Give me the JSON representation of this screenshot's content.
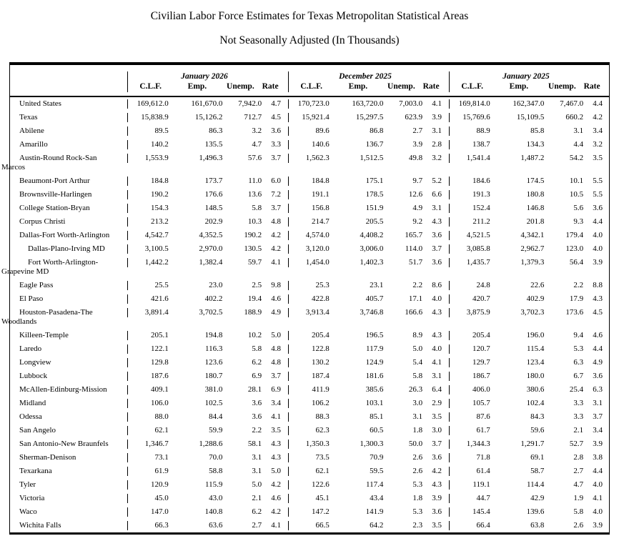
{
  "title": {
    "line1": "Civilian Labor Force Estimates for Texas Metropolitan Statistical Areas",
    "line2": "Not Seasonally Adjusted (In Thousands)"
  },
  "table": {
    "groups": [
      "January 2026",
      "December 2025",
      "January 2025"
    ],
    "columns": [
      "C.L.F.",
      "Emp.",
      "Unemp.",
      "Rate"
    ],
    "rows": [
      {
        "area": "United States",
        "indent": 0,
        "values": [
          "169,612.0",
          "161,670.0",
          "7,942.0",
          "4.7",
          "170,723.0",
          "163,720.0",
          "7,003.0",
          "4.1",
          "169,814.0",
          "162,347.0",
          "7,467.0",
          "4.4"
        ]
      },
      {
        "area": "Texas",
        "indent": 0,
        "values": [
          "15,838.9",
          "15,126.2",
          "712.7",
          "4.5",
          "15,921.4",
          "15,297.5",
          "623.9",
          "3.9",
          "15,769.6",
          "15,109.5",
          "660.2",
          "4.2"
        ]
      },
      {
        "area": "Abilene",
        "indent": 0,
        "values": [
          "89.5",
          "86.3",
          "3.2",
          "3.6",
          "89.6",
          "86.8",
          "2.7",
          "3.1",
          "88.9",
          "85.8",
          "3.1",
          "3.4"
        ]
      },
      {
        "area": "Amarillo",
        "indent": 0,
        "values": [
          "140.2",
          "135.5",
          "4.7",
          "3.3",
          "140.6",
          "136.7",
          "3.9",
          "2.8",
          "138.7",
          "134.3",
          "4.4",
          "3.2"
        ]
      },
      {
        "area": "Austin-Round Rock-San\nMarcos",
        "indent": 0,
        "values": [
          "1,553.9",
          "1,496.3",
          "57.6",
          "3.7",
          "1,562.3",
          "1,512.5",
          "49.8",
          "3.2",
          "1,541.4",
          "1,487.2",
          "54.2",
          "3.5"
        ]
      },
      {
        "area": "Beaumont-Port Arthur",
        "indent": 0,
        "values": [
          "184.8",
          "173.7",
          "11.0",
          "6.0",
          "184.8",
          "175.1",
          "9.7",
          "5.2",
          "184.6",
          "174.5",
          "10.1",
          "5.5"
        ]
      },
      {
        "area": "Brownsville-Harlingen",
        "indent": 0,
        "values": [
          "190.2",
          "176.6",
          "13.6",
          "7.2",
          "191.1",
          "178.5",
          "12.6",
          "6.6",
          "191.3",
          "180.8",
          "10.5",
          "5.5"
        ]
      },
      {
        "area": "College Station-Bryan",
        "indent": 0,
        "values": [
          "154.3",
          "148.5",
          "5.8",
          "3.7",
          "156.8",
          "151.9",
          "4.9",
          "3.1",
          "152.4",
          "146.8",
          "5.6",
          "3.6"
        ]
      },
      {
        "area": "Corpus Christi",
        "indent": 0,
        "values": [
          "213.2",
          "202.9",
          "10.3",
          "4.8",
          "214.7",
          "205.5",
          "9.2",
          "4.3",
          "211.2",
          "201.8",
          "9.3",
          "4.4"
        ]
      },
      {
        "area": "Dallas-Fort Worth-Arlington",
        "indent": 0,
        "values": [
          "4,542.7",
          "4,352.5",
          "190.2",
          "4.2",
          "4,574.0",
          "4,408.2",
          "165.7",
          "3.6",
          "4,521.5",
          "4,342.1",
          "179.4",
          "4.0"
        ]
      },
      {
        "area": "Dallas-Plano-Irving MD",
        "indent": 1,
        "values": [
          "3,100.5",
          "2,970.0",
          "130.5",
          "4.2",
          "3,120.0",
          "3,006.0",
          "114.0",
          "3.7",
          "3,085.8",
          "2,962.7",
          "123.0",
          "4.0"
        ]
      },
      {
        "area": "Fort Worth-Arlington-\nGrapevine MD",
        "indent": 1,
        "values": [
          "1,442.2",
          "1,382.4",
          "59.7",
          "4.1",
          "1,454.0",
          "1,402.3",
          "51.7",
          "3.6",
          "1,435.7",
          "1,379.3",
          "56.4",
          "3.9"
        ]
      },
      {
        "area": "Eagle Pass",
        "indent": 0,
        "values": [
          "25.5",
          "23.0",
          "2.5",
          "9.8",
          "25.3",
          "23.1",
          "2.2",
          "8.6",
          "24.8",
          "22.6",
          "2.2",
          "8.8"
        ]
      },
      {
        "area": "El Paso",
        "indent": 0,
        "values": [
          "421.6",
          "402.2",
          "19.4",
          "4.6",
          "422.8",
          "405.7",
          "17.1",
          "4.0",
          "420.7",
          "402.9",
          "17.9",
          "4.3"
        ]
      },
      {
        "area": "Houston-Pasadena-The\nWoodlands",
        "indent": 0,
        "values": [
          "3,891.4",
          "3,702.5",
          "188.9",
          "4.9",
          "3,913.4",
          "3,746.8",
          "166.6",
          "4.3",
          "3,875.9",
          "3,702.3",
          "173.6",
          "4.5"
        ]
      },
      {
        "area": "Killeen-Temple",
        "indent": 0,
        "values": [
          "205.1",
          "194.8",
          "10.2",
          "5.0",
          "205.4",
          "196.5",
          "8.9",
          "4.3",
          "205.4",
          "196.0",
          "9.4",
          "4.6"
        ]
      },
      {
        "area": "Laredo",
        "indent": 0,
        "values": [
          "122.1",
          "116.3",
          "5.8",
          "4.8",
          "122.8",
          "117.9",
          "5.0",
          "4.0",
          "120.7",
          "115.4",
          "5.3",
          "4.4"
        ]
      },
      {
        "area": "Longview",
        "indent": 0,
        "values": [
          "129.8",
          "123.6",
          "6.2",
          "4.8",
          "130.2",
          "124.9",
          "5.4",
          "4.1",
          "129.7",
          "123.4",
          "6.3",
          "4.9"
        ]
      },
      {
        "area": "Lubbock",
        "indent": 0,
        "values": [
          "187.6",
          "180.7",
          "6.9",
          "3.7",
          "187.4",
          "181.6",
          "5.8",
          "3.1",
          "186.7",
          "180.0",
          "6.7",
          "3.6"
        ]
      },
      {
        "area": "McAllen-Edinburg-Mission",
        "indent": 0,
        "values": [
          "409.1",
          "381.0",
          "28.1",
          "6.9",
          "411.9",
          "385.6",
          "26.3",
          "6.4",
          "406.0",
          "380.6",
          "25.4",
          "6.3"
        ]
      },
      {
        "area": "Midland",
        "indent": 0,
        "values": [
          "106.0",
          "102.5",
          "3.6",
          "3.4",
          "106.2",
          "103.1",
          "3.0",
          "2.9",
          "105.7",
          "102.4",
          "3.3",
          "3.1"
        ]
      },
      {
        "area": "Odessa",
        "indent": 0,
        "values": [
          "88.0",
          "84.4",
          "3.6",
          "4.1",
          "88.3",
          "85.1",
          "3.1",
          "3.5",
          "87.6",
          "84.3",
          "3.3",
          "3.7"
        ]
      },
      {
        "area": "San Angelo",
        "indent": 0,
        "values": [
          "62.1",
          "59.9",
          "2.2",
          "3.5",
          "62.3",
          "60.5",
          "1.8",
          "3.0",
          "61.7",
          "59.6",
          "2.1",
          "3.4"
        ]
      },
      {
        "area": "San Antonio-New Braunfels",
        "indent": 0,
        "values": [
          "1,346.7",
          "1,288.6",
          "58.1",
          "4.3",
          "1,350.3",
          "1,300.3",
          "50.0",
          "3.7",
          "1,344.3",
          "1,291.7",
          "52.7",
          "3.9"
        ]
      },
      {
        "area": "Sherman-Denison",
        "indent": 0,
        "values": [
          "73.1",
          "70.0",
          "3.1",
          "4.3",
          "73.5",
          "70.9",
          "2.6",
          "3.6",
          "71.8",
          "69.1",
          "2.8",
          "3.8"
        ]
      },
      {
        "area": "Texarkana",
        "indent": 0,
        "values": [
          "61.9",
          "58.8",
          "3.1",
          "5.0",
          "62.1",
          "59.5",
          "2.6",
          "4.2",
          "61.4",
          "58.7",
          "2.7",
          "4.4"
        ]
      },
      {
        "area": "Tyler",
        "indent": 0,
        "values": [
          "120.9",
          "115.9",
          "5.0",
          "4.2",
          "122.6",
          "117.4",
          "5.3",
          "4.3",
          "119.1",
          "114.4",
          "4.7",
          "4.0"
        ]
      },
      {
        "area": "Victoria",
        "indent": 0,
        "values": [
          "45.0",
          "43.0",
          "2.1",
          "4.6",
          "45.1",
          "43.4",
          "1.8",
          "3.9",
          "44.7",
          "42.9",
          "1.9",
          "4.1"
        ]
      },
      {
        "area": "Waco",
        "indent": 0,
        "values": [
          "147.0",
          "140.8",
          "6.2",
          "4.2",
          "147.2",
          "141.9",
          "5.3",
          "3.6",
          "145.4",
          "139.6",
          "5.8",
          "4.0"
        ]
      },
      {
        "area": "Wichita Falls",
        "indent": 0,
        "values": [
          "66.3",
          "63.6",
          "2.7",
          "4.1",
          "66.5",
          "64.2",
          "2.3",
          "3.5",
          "66.4",
          "63.8",
          "2.6",
          "3.9"
        ]
      }
    ]
  }
}
